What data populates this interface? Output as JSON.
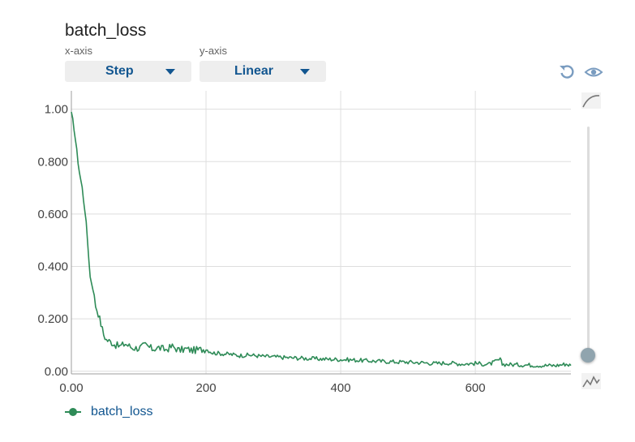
{
  "header": {
    "title": "batch_loss",
    "x_axis_caption": "x-axis",
    "y_axis_caption": "y-axis",
    "x_axis_value": "Step",
    "y_axis_value": "Linear"
  },
  "toolbar": {
    "reset_icon": "reset-zoom-icon",
    "visibility_icon": "eye-icon",
    "smooth_icon": "smoothing-curve-icon",
    "raw_icon": "raw-data-icon"
  },
  "smoothing": {
    "value": 0
  },
  "legend": {
    "label": "batch_loss"
  },
  "colors": {
    "series": "#2e8b57",
    "grid": "#dedede",
    "axis": "#9e9e9e",
    "label": "#125690"
  },
  "chart_data": {
    "type": "line",
    "title": "batch_loss",
    "xlabel": "",
    "ylabel": "",
    "xlim": [
      0,
      742
    ],
    "ylim": [
      -0.01,
      1.07
    ],
    "x_ticks": [
      {
        "value": 0,
        "label": "0.00"
      },
      {
        "value": 200,
        "label": "200"
      },
      {
        "value": 400,
        "label": "400"
      },
      {
        "value": 600,
        "label": "600"
      }
    ],
    "y_ticks": [
      {
        "value": 0,
        "label": "0.00"
      },
      {
        "value": 0.2,
        "label": "0.200"
      },
      {
        "value": 0.4,
        "label": "0.400"
      },
      {
        "value": 0.6,
        "label": "0.600"
      },
      {
        "value": 0.8,
        "label": "0.800"
      },
      {
        "value": 1.0,
        "label": "1.00"
      }
    ],
    "grid": true,
    "legend_position": "bottom-left",
    "series": [
      {
        "name": "batch_loss",
        "x": [
          0,
          4,
          8,
          12,
          16,
          20,
          24,
          28,
          32,
          36,
          40,
          44,
          48,
          52,
          56,
          60,
          66,
          72,
          80,
          90,
          100,
          110,
          120,
          130,
          140,
          150,
          160,
          170,
          180,
          190,
          200,
          210,
          220,
          235,
          250,
          265,
          280,
          300,
          320,
          340,
          360,
          380,
          400,
          420,
          440,
          460,
          480,
          500,
          520,
          540,
          560,
          580,
          600,
          620,
          637,
          640,
          660,
          680,
          700,
          720,
          735,
          742
        ],
        "y": [
          0.98,
          0.93,
          0.84,
          0.76,
          0.7,
          0.62,
          0.5,
          0.36,
          0.32,
          0.25,
          0.22,
          0.18,
          0.14,
          0.12,
          0.115,
          0.11,
          0.1,
          0.095,
          0.105,
          0.09,
          0.088,
          0.1,
          0.085,
          0.09,
          0.082,
          0.095,
          0.08,
          0.085,
          0.08,
          0.082,
          0.085,
          0.07,
          0.068,
          0.065,
          0.06,
          0.062,
          0.058,
          0.055,
          0.052,
          0.05,
          0.048,
          0.046,
          0.045,
          0.043,
          0.04,
          0.038,
          0.036,
          0.035,
          0.033,
          0.03,
          0.032,
          0.028,
          0.03,
          0.026,
          0.045,
          0.027,
          0.025,
          0.024,
          0.022,
          0.022,
          0.028,
          0.022
        ]
      }
    ]
  }
}
